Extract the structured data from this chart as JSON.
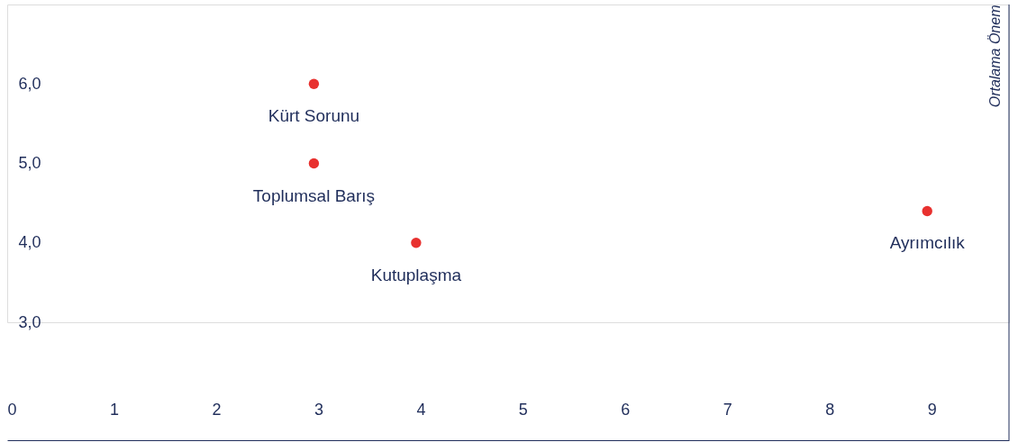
{
  "chart_data": {
    "type": "scatter",
    "ylabel": "Ortalama Önem",
    "x": [
      3,
      3,
      4,
      9
    ],
    "series": [
      {
        "color": "#e8312f",
        "values": [
          6.0,
          5.0,
          4.0,
          4.4
        ]
      }
    ],
    "xlim": [
      0,
      9.8
    ],
    "xticks": [
      0,
      1,
      2,
      3,
      4,
      5,
      6,
      7,
      8,
      9
    ],
    "ylim": [
      3,
      7
    ],
    "yticks": [
      {
        "value": 3,
        "label": "3,0"
      },
      {
        "value": 4,
        "label": "4,0"
      },
      {
        "value": 5,
        "label": "5,0"
      },
      {
        "value": 6,
        "label": "6,0"
      }
    ],
    "grid": false,
    "marker": "circle",
    "annotations": [
      {
        "text": "Kürt Sorunu",
        "x": 3,
        "y": 6.0
      },
      {
        "text": "Toplumsal Barış",
        "x": 3,
        "y": 5.0
      },
      {
        "text": "Kutuplaşma",
        "x": 4,
        "y": 4.0
      },
      {
        "text": "Ayrımcılık",
        "x": 9,
        "y": 4.4
      }
    ]
  }
}
